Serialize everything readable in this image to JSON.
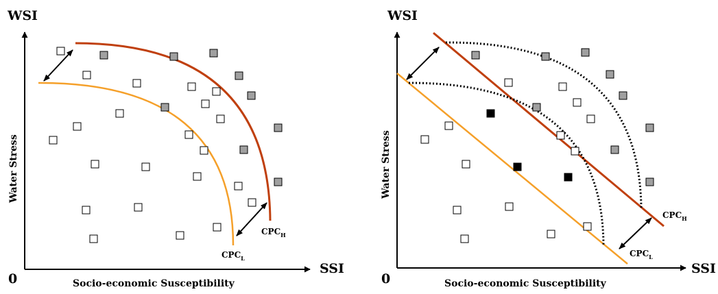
{
  "left_panel": {
    "y_axis_title": "WSI",
    "x_axis_title": "SSI",
    "origin_label": "0",
    "y_axis_name": "Water Stress",
    "x_axis_name": "Socio-economic Susceptibility",
    "curve_high_label": "CPC",
    "curve_high_sub": "H",
    "curve_low_label": "CPC",
    "curve_low_sub": "L"
  },
  "right_panel": {
    "y_axis_title": "WSI",
    "x_axis_title": "SSI",
    "origin_label": "0",
    "y_axis_name": "Water Stress",
    "x_axis_name": "Socio-economic Susceptibility",
    "curve_high_label": "CPC",
    "curve_high_sub": "H",
    "curve_low_label": "CPC",
    "curve_low_sub": "L"
  },
  "colors": {
    "cpc_high": "#c0400f",
    "cpc_low": "#f5a02a",
    "marker_gray": "#a0a0a0",
    "marker_black": "#000000",
    "marker_white": "#ffffff"
  }
}
